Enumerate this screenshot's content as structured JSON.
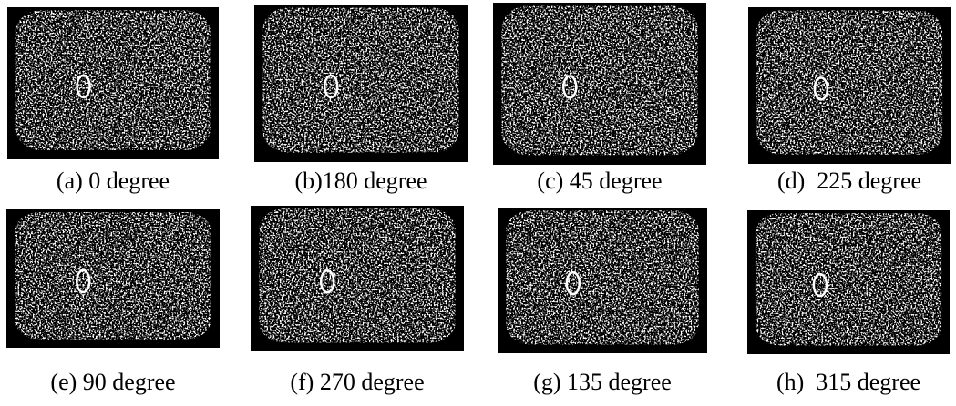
{
  "figure": {
    "panels": [
      {
        "caption": "(a) 0 degree"
      },
      {
        "caption": "(b)180 degree"
      },
      {
        "caption": "(c) 45 degree"
      },
      {
        "caption": "(d)  225 degree"
      },
      {
        "caption": "(e) 90 degree"
      },
      {
        "caption": "(f) 270 degree"
      },
      {
        "caption": "(g) 135 degree"
      },
      {
        "caption": "(h)  315 degree"
      }
    ]
  }
}
